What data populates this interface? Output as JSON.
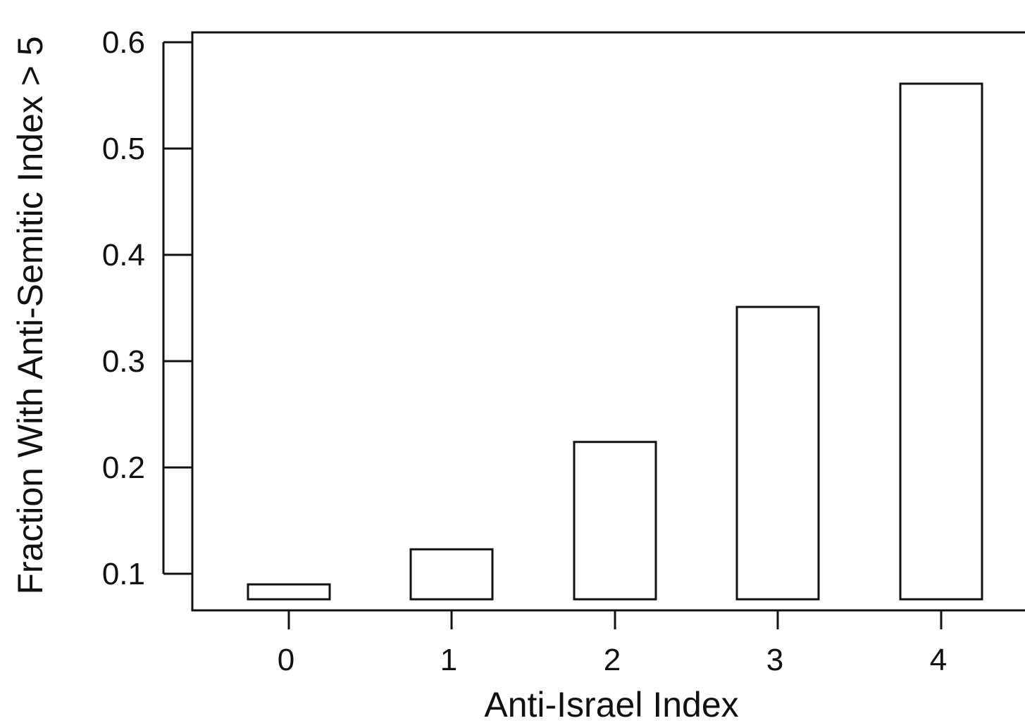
{
  "chart_data": {
    "type": "bar",
    "title": "",
    "xlabel": "Anti-Israel Index",
    "ylabel": "Fraction With Anti-Semitic Index > 5",
    "categories": [
      "0",
      "1",
      "2",
      "3",
      "4"
    ],
    "values": [
      0.09,
      0.123,
      0.224,
      0.351,
      0.561
    ],
    "ylim": [
      0.0,
      0.6
    ],
    "yticks": [
      0.1,
      0.2,
      0.3,
      0.4,
      0.5,
      0.6
    ],
    "ytick_labels": [
      "0.1",
      "0.2",
      "0.3",
      "0.4",
      "0.5",
      "0.6"
    ],
    "bar_base": 0.076,
    "bar_fill": "#ffffff",
    "bar_stroke": "#111111",
    "grid": false,
    "legend": "none"
  }
}
